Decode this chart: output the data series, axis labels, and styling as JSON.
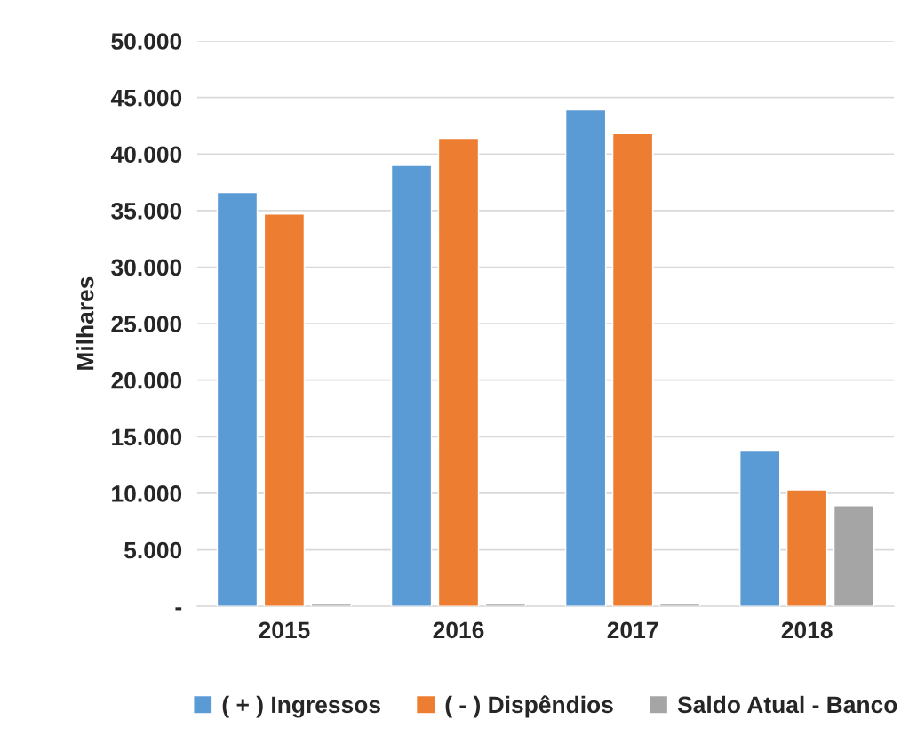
{
  "chart_data": {
    "type": "bar",
    "ylabel": "Milhares",
    "categories": [
      "2015",
      "2016",
      "2017",
      "2018"
    ],
    "series": [
      {
        "name": "( + ) Ingressos",
        "color": "#5b9bd5",
        "values": [
          36600,
          39000,
          43900,
          13800
        ]
      },
      {
        "name": "( - ) Dispêndios",
        "color": "#ed7d31",
        "values": [
          34700,
          41400,
          41800,
          10300
        ]
      },
      {
        "name": "Saldo Atual - Banco",
        "color": "#a5a5a5",
        "values": [
          200,
          200,
          200,
          8900
        ]
      }
    ],
    "ylim": [
      0,
      50000
    ],
    "yticks": [
      {
        "value": 0,
        "label": "-"
      },
      {
        "value": 5000,
        "label": "5.000"
      },
      {
        "value": 10000,
        "label": "10.000"
      },
      {
        "value": 15000,
        "label": "15.000"
      },
      {
        "value": 20000,
        "label": "20.000"
      },
      {
        "value": 25000,
        "label": "25.000"
      },
      {
        "value": 30000,
        "label": "30.000"
      },
      {
        "value": 35000,
        "label": "35.000"
      },
      {
        "value": 40000,
        "label": "40.000"
      },
      {
        "value": 45000,
        "label": "45.000"
      },
      {
        "value": 50000,
        "label": "50.000"
      }
    ],
    "grid": "y",
    "legend": "bottom"
  }
}
